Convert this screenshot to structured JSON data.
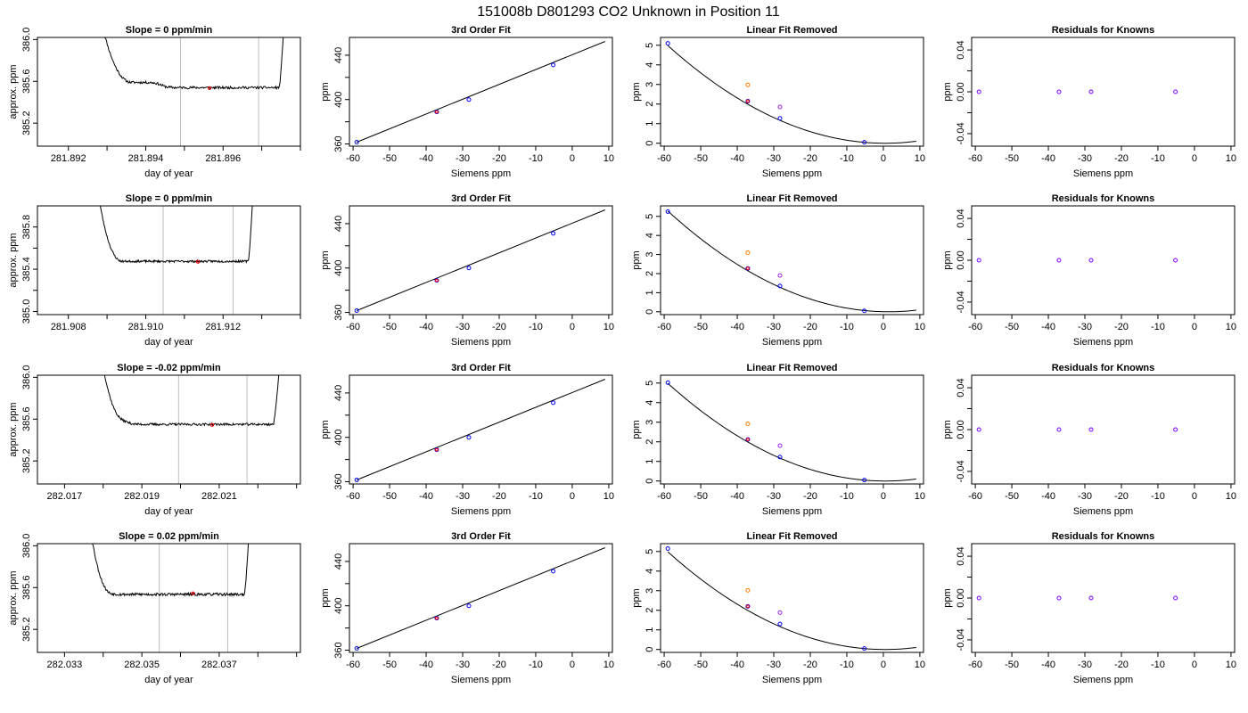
{
  "title": "151008b     D801293   CO2 Unknown in Position  11",
  "colors": {
    "line": "#000000",
    "frame": "#000000",
    "vline": "#bebebe",
    "known_marker": "#0000ff",
    "unknown_marker": "#ff0000",
    "orange_marker": "#ff7f00",
    "purple_marker": "#a020f0",
    "resid_marker": "#7f00ff"
  },
  "chart_data": [
    {
      "row": 0,
      "col": 0,
      "type": "line",
      "title": "Slope =  0  ppm/min",
      "xlabel": "day of year",
      "ylabel": "approx. ppm",
      "xlim": [
        281.8912,
        281.898
      ],
      "ylim": [
        384.98,
        386.02
      ],
      "xticks": [
        281.892,
        281.893,
        281.894,
        281.895,
        281.896,
        281.897,
        281.898
      ],
      "xtick_labels": [
        "281.892",
        "",
        "281.894",
        "",
        "281.896",
        "",
        ""
      ],
      "yticks": [
        385.2,
        385.6,
        386.0
      ],
      "ytick_labels": [
        "385.2",
        "385.6",
        "386.0"
      ],
      "vlines": [
        281.8949,
        281.89692
      ],
      "trace": {
        "start": 281.8929,
        "end": 281.8976,
        "spike_left": 0.00075,
        "spike_right": 0.00015,
        "plateau": 385.54,
        "step_x": 281.8944,
        "step_amp": 0.05,
        "noise": 0.012,
        "seed": 11,
        "ymax": 386.05
      },
      "marker": {
        "x": 281.89565,
        "y": 385.535
      }
    },
    {
      "row": 0,
      "col": 1,
      "type": "scatter",
      "title": "3rd Order Fit",
      "xlabel": "Siemens ppm",
      "ylabel": "ppm",
      "xlim": [
        -61.0,
        11.0
      ],
      "ylim": [
        358.0,
        456.0
      ],
      "xticks": [
        -60,
        -50,
        -40,
        -30,
        -20,
        -10,
        0,
        10
      ],
      "xtick_labels": [
        "-60",
        "-50",
        "-40",
        "-30",
        "-20",
        "-10",
        "0",
        "10"
      ],
      "yticks": [
        360,
        380,
        400,
        420,
        440
      ],
      "ytick_labels": [
        "360",
        "",
        "400",
        "",
        "440"
      ],
      "fit_line": [
        [
          -59.0,
          361.6
        ],
        [
          9.0,
          452.4
        ]
      ],
      "known_points": [
        [
          -59.0,
          361.6
        ],
        [
          -37.1,
          388.8
        ],
        [
          -28.3,
          400.0
        ],
        [
          -5.2,
          431.2
        ]
      ],
      "unknown_point": [
        -37.1,
        388.8
      ]
    },
    {
      "row": 0,
      "col": 2,
      "type": "scatter",
      "title": "Linear Fit Removed",
      "xlabel": "Siemens ppm",
      "ylabel": "ppm",
      "xlim": [
        -61.0,
        11.0
      ],
      "ylim": [
        -0.15,
        5.4
      ],
      "xticks": [
        -60,
        -50,
        -40,
        -30,
        -20,
        -10,
        0,
        10
      ],
      "xtick_labels": [
        "-60",
        "-50",
        "-40",
        "-30",
        "-20",
        "-10",
        "0",
        "10"
      ],
      "yticks": [
        0,
        1,
        2,
        3,
        4,
        5
      ],
      "ytick_labels": [
        "0",
        "1",
        "2",
        "3",
        "4",
        "5"
      ],
      "curve": {
        "vertex": 0.5,
        "a": 0.001408,
        "x_end": 9.0
      },
      "known_points": [
        [
          -59.0,
          5.1
        ],
        [
          -37.1,
          2.15
        ],
        [
          -28.3,
          1.27
        ],
        [
          -5.2,
          0.05
        ]
      ],
      "unknown_point": [
        -37.1,
        2.15
      ],
      "orange_point": [
        -37.1,
        2.98
      ],
      "purple_point": [
        -28.3,
        1.85
      ]
    },
    {
      "row": 0,
      "col": 3,
      "type": "scatter",
      "title": "Residuals for Knowns",
      "xlabel": "Siemens ppm",
      "ylabel": "ppm",
      "xlim": [
        -61.0,
        11.0
      ],
      "ylim": [
        -0.052,
        0.052
      ],
      "xticks": [
        -60,
        -50,
        -40,
        -30,
        -20,
        -10,
        0,
        10
      ],
      "xtick_labels": [
        "-60",
        "-50",
        "-40",
        "-30",
        "-20",
        "-10",
        "0",
        "10"
      ],
      "yticks": [
        -0.04,
        -0.02,
        0.0,
        0.02,
        0.04
      ],
      "ytick_labels": [
        "-0.04",
        "",
        "0.00",
        "",
        "0.04"
      ],
      "resid_points": [
        [
          -59.0,
          0.0
        ],
        [
          -37.1,
          0.0
        ],
        [
          -28.3,
          0.0
        ],
        [
          -5.2,
          0.0
        ]
      ]
    },
    {
      "row": 1,
      "col": 0,
      "type": "line",
      "title": "Slope =  0  ppm/min",
      "xlabel": "day of year",
      "ylabel": "approx. ppm",
      "xlim": [
        281.9072,
        281.914
      ],
      "ylim": [
        384.97,
        386.0
      ],
      "xticks": [
        281.908,
        281.909,
        281.91,
        281.911,
        281.912,
        281.913,
        281.914
      ],
      "xtick_labels": [
        "281.908",
        "",
        "281.910",
        "",
        "281.912",
        "",
        ""
      ],
      "yticks": [
        385.0,
        385.2,
        385.4,
        385.6,
        385.8
      ],
      "ytick_labels": [
        "385.0",
        "",
        "385.4",
        "",
        "385.8"
      ],
      "vlines": [
        281.91045,
        281.91226
      ],
      "trace": {
        "start": 281.9088,
        "end": 281.9128,
        "spike_left": 0.0006,
        "spike_right": 0.00015,
        "plateau": 385.475,
        "step_x": 281.9,
        "step_amp": 0.0,
        "noise": 0.01,
        "seed": 23,
        "ymax": 386.05
      },
      "marker": {
        "x": 281.91135,
        "y": 385.47
      }
    },
    {
      "row": 1,
      "col": 1,
      "type": "scatter",
      "title": "3rd Order Fit",
      "xlabel": "Siemens ppm",
      "ylabel": "ppm",
      "xlim": [
        -61.0,
        11.0
      ],
      "ylim": [
        358.0,
        456.0
      ],
      "xticks": [
        -60,
        -50,
        -40,
        -30,
        -20,
        -10,
        0,
        10
      ],
      "xtick_labels": [
        "-60",
        "-50",
        "-40",
        "-30",
        "-20",
        "-10",
        "0",
        "10"
      ],
      "yticks": [
        360,
        380,
        400,
        420,
        440
      ],
      "ytick_labels": [
        "360",
        "",
        "400",
        "",
        "440"
      ],
      "fit_line": [
        [
          -59.0,
          361.6
        ],
        [
          9.0,
          452.4
        ]
      ],
      "known_points": [
        [
          -59.0,
          361.6
        ],
        [
          -37.1,
          388.8
        ],
        [
          -28.3,
          400.0
        ],
        [
          -5.2,
          431.2
        ]
      ],
      "unknown_point": [
        -37.1,
        388.8
      ]
    },
    {
      "row": 1,
      "col": 2,
      "type": "scatter",
      "title": "Linear Fit Removed",
      "xlabel": "Siemens ppm",
      "ylabel": "ppm",
      "xlim": [
        -61.0,
        11.0
      ],
      "ylim": [
        -0.15,
        5.55
      ],
      "xticks": [
        -60,
        -50,
        -40,
        -30,
        -20,
        -10,
        0,
        10
      ],
      "xtick_labels": [
        "-60",
        "-50",
        "-40",
        "-30",
        "-20",
        "-10",
        "0",
        "10"
      ],
      "yticks": [
        0,
        1,
        2,
        3,
        4,
        5
      ],
      "ytick_labels": [
        "0",
        "1",
        "2",
        "3",
        "4",
        "5"
      ],
      "curve": {
        "vertex": 1.5,
        "a": 0.001442,
        "x_end": 9.0
      },
      "known_points": [
        [
          -59.0,
          5.25
        ],
        [
          -37.1,
          2.27
        ],
        [
          -28.3,
          1.35
        ],
        [
          -5.2,
          0.05
        ]
      ],
      "unknown_point": [
        -37.1,
        2.27
      ],
      "orange_point": [
        -37.1,
        3.1
      ],
      "purple_point": [
        -28.3,
        1.9
      ]
    },
    {
      "row": 1,
      "col": 3,
      "type": "scatter",
      "title": "Residuals for Knowns",
      "xlabel": "Siemens ppm",
      "ylabel": "ppm",
      "xlim": [
        -61.0,
        11.0
      ],
      "ylim": [
        -0.052,
        0.052
      ],
      "xticks": [
        -60,
        -50,
        -40,
        -30,
        -20,
        -10,
        0,
        10
      ],
      "xtick_labels": [
        "-60",
        "-50",
        "-40",
        "-30",
        "-20",
        "-10",
        "0",
        "10"
      ],
      "yticks": [
        -0.04,
        -0.02,
        0.0,
        0.02,
        0.04
      ],
      "ytick_labels": [
        "-0.04",
        "",
        "0.00",
        "",
        "0.04"
      ],
      "resid_points": [
        [
          -59.0,
          0.0
        ],
        [
          -37.1,
          0.0
        ],
        [
          -28.3,
          0.0
        ],
        [
          -5.2,
          0.0
        ]
      ]
    },
    {
      "row": 2,
      "col": 0,
      "type": "line",
      "title": "Slope =  -0.02  ppm/min",
      "xlabel": "day of year",
      "ylabel": "approx. ppm",
      "xlim": [
        282.0163,
        282.0231
      ],
      "ylim": [
        384.98,
        386.02
      ],
      "xticks": [
        282.017,
        282.018,
        282.019,
        282.02,
        282.021,
        282.022,
        282.023
      ],
      "xtick_labels": [
        "282.017",
        "",
        "282.019",
        "",
        "282.021",
        "",
        ""
      ],
      "yticks": [
        385.2,
        385.6,
        386.0
      ],
      "ytick_labels": [
        "385.2",
        "385.6",
        "386.0"
      ],
      "vlines": [
        282.01995,
        282.02172
      ],
      "trace": {
        "start": 282.018,
        "end": 282.0226,
        "spike_left": 0.00055,
        "spike_right": 0.0002,
        "plateau": 385.55,
        "step_x": 282.0186,
        "step_amp": 0.05,
        "noise": 0.011,
        "seed": 37,
        "ymax": 386.05
      },
      "marker": {
        "x": 282.02082,
        "y": 385.545
      }
    },
    {
      "row": 2,
      "col": 1,
      "type": "scatter",
      "title": "3rd Order Fit",
      "xlabel": "Siemens ppm",
      "ylabel": "ppm",
      "xlim": [
        -61.0,
        11.0
      ],
      "ylim": [
        358.0,
        456.0
      ],
      "xticks": [
        -60,
        -50,
        -40,
        -30,
        -20,
        -10,
        0,
        10
      ],
      "xtick_labels": [
        "-60",
        "-50",
        "-40",
        "-30",
        "-20",
        "-10",
        "0",
        "10"
      ],
      "yticks": [
        360,
        380,
        400,
        420,
        440
      ],
      "ytick_labels": [
        "360",
        "",
        "400",
        "",
        "440"
      ],
      "fit_line": [
        [
          -59.0,
          361.6
        ],
        [
          9.0,
          452.4
        ]
      ],
      "known_points": [
        [
          -59.0,
          361.6
        ],
        [
          -37.1,
          388.8
        ],
        [
          -28.3,
          400.0
        ],
        [
          -5.2,
          431.2
        ]
      ],
      "unknown_point": [
        -37.1,
        388.8
      ]
    },
    {
      "row": 2,
      "col": 2,
      "type": "scatter",
      "title": "Linear Fit Removed",
      "xlabel": "Siemens ppm",
      "ylabel": "ppm",
      "xlim": [
        -61.0,
        11.0
      ],
      "ylim": [
        -0.15,
        5.4
      ],
      "xticks": [
        -60,
        -50,
        -40,
        -30,
        -20,
        -10,
        0,
        10
      ],
      "xtick_labels": [
        "-60",
        "-50",
        "-40",
        "-30",
        "-20",
        "-10",
        "0",
        "10"
      ],
      "yticks": [
        0,
        1,
        2,
        3,
        4,
        5
      ],
      "ytick_labels": [
        "0",
        "1",
        "2",
        "3",
        "4",
        "5"
      ],
      "curve": {
        "vertex": 0.5,
        "a": 0.001408,
        "x_end": 9.0
      },
      "known_points": [
        [
          -59.0,
          5.02
        ],
        [
          -37.1,
          2.12
        ],
        [
          -28.3,
          1.22
        ],
        [
          -5.2,
          0.05
        ]
      ],
      "unknown_point": [
        -37.1,
        2.12
      ],
      "orange_point": [
        -37.1,
        2.92
      ],
      "purple_point": [
        -28.3,
        1.8
      ]
    },
    {
      "row": 2,
      "col": 3,
      "type": "scatter",
      "title": "Residuals for Knowns",
      "xlabel": "Siemens ppm",
      "ylabel": "ppm",
      "xlim": [
        -61.0,
        11.0
      ],
      "ylim": [
        -0.052,
        0.052
      ],
      "xticks": [
        -60,
        -50,
        -40,
        -30,
        -20,
        -10,
        0,
        10
      ],
      "xtick_labels": [
        "-60",
        "-50",
        "-40",
        "-30",
        "-20",
        "-10",
        "0",
        "10"
      ],
      "yticks": [
        -0.04,
        -0.02,
        0.0,
        0.02,
        0.04
      ],
      "ytick_labels": [
        "-0.04",
        "",
        "0.00",
        "",
        "0.04"
      ],
      "resid_points": [
        [
          -59.0,
          0.0
        ],
        [
          -37.1,
          0.0
        ],
        [
          -28.3,
          0.0
        ],
        [
          -5.2,
          0.0
        ]
      ]
    },
    {
      "row": 3,
      "col": 0,
      "type": "line",
      "title": "Slope =  0.02  ppm/min",
      "xlabel": "day of year",
      "ylabel": "approx. ppm",
      "xlim": [
        282.0323,
        282.0391
      ],
      "ylim": [
        384.98,
        386.02
      ],
      "xticks": [
        282.033,
        282.034,
        282.035,
        282.036,
        282.037,
        282.038,
        282.039
      ],
      "xtick_labels": [
        "282.033",
        "",
        "282.035",
        "",
        "282.037",
        "",
        ""
      ],
      "yticks": [
        385.2,
        385.6,
        386.0
      ],
      "ytick_labels": [
        "385.2",
        "385.6",
        "386.0"
      ],
      "vlines": [
        282.03545,
        282.03722
      ],
      "trace": {
        "start": 282.0337,
        "end": 282.0378,
        "spike_left": 0.0005,
        "spike_right": 0.00015,
        "plateau": 385.535,
        "step_x": 282.0341,
        "step_amp": 0.04,
        "noise": 0.013,
        "seed": 53,
        "ymax": 386.05
      },
      "marker": {
        "x": 282.03632,
        "y": 385.545
      }
    },
    {
      "row": 3,
      "col": 1,
      "type": "scatter",
      "title": "3rd Order Fit",
      "xlabel": "Siemens ppm",
      "ylabel": "ppm",
      "xlim": [
        -61.0,
        11.0
      ],
      "ylim": [
        358.0,
        456.0
      ],
      "xticks": [
        -60,
        -50,
        -40,
        -30,
        -20,
        -10,
        0,
        10
      ],
      "xtick_labels": [
        "-60",
        "-50",
        "-40",
        "-30",
        "-20",
        "-10",
        "0",
        "10"
      ],
      "yticks": [
        360,
        380,
        400,
        420,
        440
      ],
      "ytick_labels": [
        "360",
        "",
        "400",
        "",
        "440"
      ],
      "fit_line": [
        [
          -59.0,
          361.6
        ],
        [
          9.0,
          452.4
        ]
      ],
      "known_points": [
        [
          -59.0,
          361.6
        ],
        [
          -37.1,
          388.8
        ],
        [
          -28.3,
          400.0
        ],
        [
          -5.2,
          431.2
        ]
      ],
      "unknown_point": [
        -37.1,
        388.8
      ]
    },
    {
      "row": 3,
      "col": 2,
      "type": "scatter",
      "title": "Linear Fit Removed",
      "xlabel": "Siemens ppm",
      "ylabel": "ppm",
      "xlim": [
        -61.0,
        11.0
      ],
      "ylim": [
        -0.15,
        5.4
      ],
      "xticks": [
        -60,
        -50,
        -40,
        -30,
        -20,
        -10,
        0,
        10
      ],
      "xtick_labels": [
        "-60",
        "-50",
        "-40",
        "-30",
        "-20",
        "-10",
        "0",
        "10"
      ],
      "yticks": [
        0,
        1,
        2,
        3,
        4,
        5
      ],
      "ytick_labels": [
        "0",
        "1",
        "2",
        "3",
        "4",
        "5"
      ],
      "curve": {
        "vertex": 0.5,
        "a": 0.001408,
        "x_end": 9.0
      },
      "known_points": [
        [
          -59.0,
          5.15
        ],
        [
          -37.1,
          2.2
        ],
        [
          -28.3,
          1.3
        ],
        [
          -5.2,
          0.05
        ]
      ],
      "unknown_point": [
        -37.1,
        2.2
      ],
      "orange_point": [
        -37.1,
        3.02
      ],
      "purple_point": [
        -28.3,
        1.88
      ]
    },
    {
      "row": 3,
      "col": 3,
      "type": "scatter",
      "title": "Residuals for Knowns",
      "xlabel": "Siemens ppm",
      "ylabel": "ppm",
      "xlim": [
        -61.0,
        11.0
      ],
      "ylim": [
        -0.052,
        0.052
      ],
      "xticks": [
        -60,
        -50,
        -40,
        -30,
        -20,
        -10,
        0,
        10
      ],
      "xtick_labels": [
        "-60",
        "-50",
        "-40",
        "-30",
        "-20",
        "-10",
        "0",
        "10"
      ],
      "yticks": [
        -0.04,
        -0.02,
        0.0,
        0.02,
        0.04
      ],
      "ytick_labels": [
        "-0.04",
        "",
        "0.00",
        "",
        "0.04"
      ],
      "resid_points": [
        [
          -59.0,
          0.0
        ],
        [
          -37.1,
          0.0
        ],
        [
          -28.3,
          0.0
        ],
        [
          -5.2,
          0.0
        ]
      ]
    }
  ]
}
